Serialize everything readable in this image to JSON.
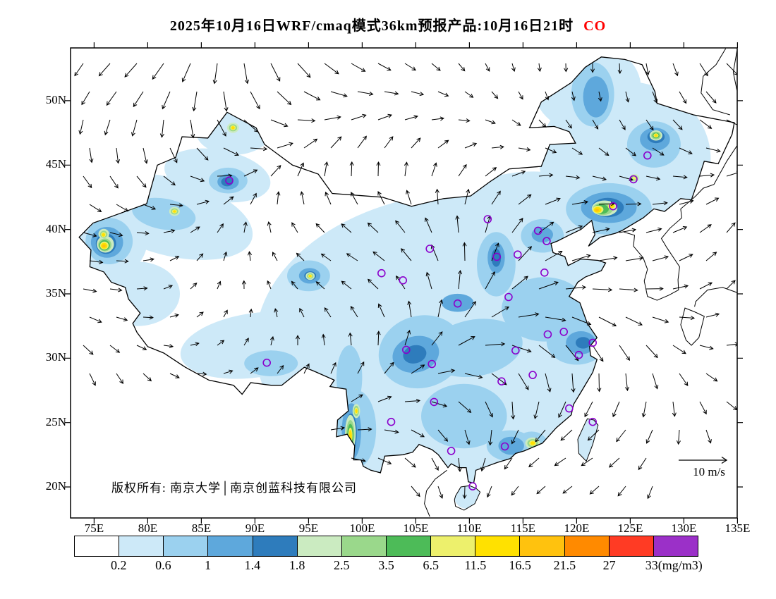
{
  "title": {
    "text": "2025年10月16日WRF/cmaq模式36km预报产品:10月16日21时",
    "pollutant": "CO",
    "pollutant_color": "#FF0000"
  },
  "axes": {
    "lat_labels": [
      "50N",
      "45N",
      "40N",
      "35N",
      "30N",
      "25N",
      "20N"
    ],
    "lat_values": [
      50,
      45,
      40,
      35,
      30,
      25,
      20
    ],
    "lon_labels": [
      "75E",
      "80E",
      "85E",
      "90E",
      "95E",
      "100E",
      "105E",
      "110E",
      "115E",
      "120E",
      "125E",
      "130E",
      "135E"
    ],
    "lon_values": [
      75,
      80,
      85,
      90,
      95,
      100,
      105,
      110,
      115,
      120,
      125,
      130,
      135
    ]
  },
  "map": {
    "copyright": "版权所有: 南京大学│南京创蓝科技有限公司",
    "wind_scale_label": "10 m/s",
    "station_marker_color": "#8B00CC",
    "boundary_color": "#000000",
    "sea_land_background": "#FFFFFF"
  },
  "colorbar": {
    "tick_labels": [
      "0.2",
      "0.6",
      "1",
      "1.4",
      "1.8",
      "2.5",
      "3.5",
      "6.5",
      "11.5",
      "16.5",
      "21.5",
      "27",
      "33(mg/m3)"
    ],
    "colors": [
      "#FFFFFF",
      "#CDE9F8",
      "#9BD1EF",
      "#5EA8DC",
      "#2E7CBC",
      "#CBEBC1",
      "#9AD88B",
      "#4DBB58",
      "#EDF06C",
      "#FFE100",
      "#FFC20E",
      "#FF8A00",
      "#FF3B24",
      "#9B30C8"
    ]
  },
  "chart_data": {
    "type": "heatmap",
    "title": "2025年10月16日WRF/cmaq模式36km预报产品:10月16日21时 CO",
    "variable": "CO",
    "units": "mg/m3",
    "model": "WRF/cmaq 36km",
    "valid_time": "10月16日21时",
    "xlim": [
      73,
      135
    ],
    "ylim": [
      17.6,
      54.1
    ],
    "x_ticks": [
      75,
      80,
      85,
      90,
      95,
      100,
      105,
      110,
      115,
      120,
      125,
      130,
      135
    ],
    "y_ticks": [
      20,
      25,
      30,
      35,
      40,
      45,
      50
    ],
    "contour_levels": [
      0.2,
      0.6,
      1,
      1.4,
      1.8,
      2.5,
      3.5,
      6.5,
      11.5,
      16.5,
      21.5,
      27,
      33
    ],
    "level_colors": [
      "#FFFFFF",
      "#CDE9F8",
      "#9BD1EF",
      "#5EA8DC",
      "#2E7CBC",
      "#CBEBC1",
      "#9AD88B",
      "#4DBB58",
      "#EDF06C",
      "#FFE100",
      "#FFC20E",
      "#FF8A00",
      "#FF3B24",
      "#9B30C8"
    ],
    "wind_reference": {
      "speed": 10,
      "units": "m/s"
    },
    "ambient_range_mgm3": "0.2-1.4 over most of eastern and central China; below 0.2 over western deserts and adjacent seas",
    "hotspots_approx": [
      {
        "lon": 76.0,
        "lat": 38.8,
        "co_mgm3": "6.5-11.5"
      },
      {
        "lon": 75.9,
        "lat": 39.6,
        "co_mgm3": "3.5-6.5"
      },
      {
        "lon": 122.0,
        "lat": 41.5,
        "co_mgm3": "6.5-11.5"
      },
      {
        "lon": 123.3,
        "lat": 41.8,
        "co_mgm3": "3.5-6.5"
      },
      {
        "lon": 127.4,
        "lat": 47.3,
        "co_mgm3": "3.5-6.5"
      },
      {
        "lon": 98.9,
        "lat": 24.0,
        "co_mgm3": "3.5-6.5"
      },
      {
        "lon": 99.5,
        "lat": 25.9,
        "co_mgm3": "3.5"
      },
      {
        "lon": 95.2,
        "lat": 36.4,
        "co_mgm3": "3.5"
      },
      {
        "lon": 88.0,
        "lat": 47.9,
        "co_mgm3": "3.5"
      },
      {
        "lon": 82.5,
        "lat": 41.4,
        "co_mgm3": "3.5"
      },
      {
        "lon": 115.9,
        "lat": 23.4,
        "co_mgm3": "3.5"
      },
      {
        "lon": 125.4,
        "lat": 44.0,
        "co_mgm3": "2.5-3.5"
      }
    ]
  }
}
